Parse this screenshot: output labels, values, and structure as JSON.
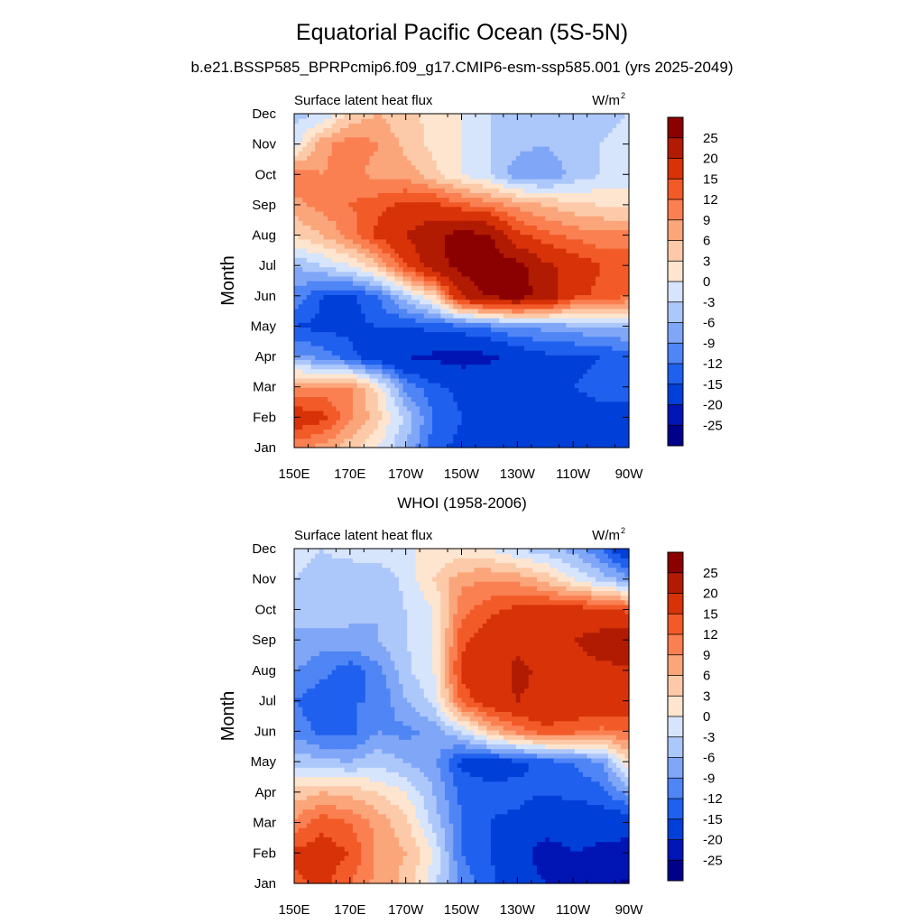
{
  "figure": {
    "title": "Equatorial Pacific Ocean (5S-5N)",
    "subtitle": "b.e21.BSSP585_BPRPcmip6.f09_g17.CMIP6-esm-ssp585.001 (yrs 2025-2049)"
  },
  "colors": {
    "palette": [
      "#00008b",
      "#0015b4",
      "#0040d8",
      "#2060ee",
      "#4f85f5",
      "#80a6f7",
      "#acc7fa",
      "#d6e4fc",
      "#fde5d0",
      "#fccaa8",
      "#fba57b",
      "#fa8052",
      "#f25a28",
      "#d73208",
      "#b01b02",
      "#8b0000"
    ]
  },
  "chart_data": [
    {
      "type": "heatmap",
      "title": "",
      "left_label": "Surface latent heat flux",
      "right_label": "W/m",
      "right_label_sup": "2",
      "xlabel": "",
      "ylabel": "Month",
      "x_range": [
        "150E",
        "90W"
      ],
      "x_ticks": [
        "150E",
        "170E",
        "170W",
        "150W",
        "130W",
        "110W",
        "90W"
      ],
      "y_ticks": [
        "Jan",
        "Feb",
        "Mar",
        "Apr",
        "May",
        "Jun",
        "Jul",
        "Aug",
        "Sep",
        "Oct",
        "Nov",
        "Dec"
      ],
      "colorbar_levels": [
        -25,
        -20,
        -15,
        -12,
        -9,
        -6,
        -3,
        0,
        3,
        6,
        9,
        12,
        15,
        20,
        25
      ],
      "colorbar_labels": [
        "25",
        "20",
        "15",
        "12",
        "9",
        "6",
        "3",
        "0",
        "-3",
        "-6",
        "-9",
        "-12",
        "-15",
        "-20",
        "-25"
      ],
      "grid": {
        "months": [
          "Jan",
          "Feb",
          "Mar",
          "Apr",
          "May",
          "Jun",
          "Jul",
          "Aug",
          "Sep",
          "Oct",
          "Nov",
          "Dec"
        ],
        "longitudes": [
          "150E",
          "160E",
          "170E",
          "180",
          "170W",
          "160W",
          "150W",
          "140W",
          "130W",
          "120W",
          "110W",
          "100W",
          "90W"
        ],
        "values": [
          [
            10,
            8,
            4,
            0,
            -6,
            -14,
            -16,
            -17,
            -18,
            -18,
            -17,
            -16,
            -15
          ],
          [
            18,
            16,
            10,
            4,
            -4,
            -12,
            -15,
            -17,
            -16,
            -17,
            -17,
            -16,
            -16
          ],
          [
            9,
            10,
            10,
            2,
            -10,
            -14,
            -16,
            -17,
            -17,
            -17,
            -15,
            -14,
            -14
          ],
          [
            -8,
            -10,
            -14,
            -18,
            -20,
            -21,
            -22,
            -21,
            -18,
            -16,
            -16,
            -15,
            -14
          ],
          [
            -15,
            -16,
            -16,
            -15,
            -15,
            -14,
            -13,
            -11,
            -9,
            -8,
            -7,
            -6,
            -5
          ],
          [
            -10,
            -15,
            -16,
            -12,
            -4,
            3,
            20,
            26,
            27,
            24,
            16,
            14,
            12
          ],
          [
            -6,
            -3,
            0,
            5,
            15,
            23,
            27,
            28,
            27,
            21,
            18,
            15,
            14
          ],
          [
            3,
            6,
            10,
            16,
            20,
            24,
            27,
            26,
            16,
            13,
            11,
            10,
            10
          ],
          [
            8,
            10,
            12,
            14,
            16,
            16,
            13,
            11,
            8,
            6,
            4,
            3,
            2
          ],
          [
            12,
            9,
            10,
            8,
            8,
            4,
            0,
            -3,
            -8,
            -9,
            -5,
            -3,
            -2
          ],
          [
            -2,
            8,
            11,
            9,
            5,
            2,
            0,
            -3,
            -5,
            -6,
            -4,
            -3,
            -2
          ],
          [
            -4,
            -3,
            4,
            6,
            4,
            2,
            0,
            -3,
            -5,
            -5,
            -4,
            -4,
            -3
          ]
        ]
      }
    },
    {
      "type": "heatmap",
      "title": "WHOI (1958-2006)",
      "left_label": "Surface latent heat flux",
      "right_label": "W/m",
      "right_label_sup": "2",
      "xlabel": "",
      "ylabel": "Month",
      "x_range": [
        "150E",
        "90W"
      ],
      "x_ticks": [
        "150E",
        "170E",
        "170W",
        "150W",
        "130W",
        "110W",
        "90W"
      ],
      "y_ticks": [
        "Jan",
        "Feb",
        "Mar",
        "Apr",
        "May",
        "Jun",
        "Jul",
        "Aug",
        "Sep",
        "Oct",
        "Nov",
        "Dec"
      ],
      "colorbar_levels": [
        -25,
        -20,
        -15,
        -12,
        -9,
        -6,
        -3,
        0,
        3,
        6,
        9,
        12,
        15,
        20,
        25
      ],
      "colorbar_labels": [
        "25",
        "20",
        "15",
        "12",
        "9",
        "6",
        "3",
        "0",
        "-3",
        "-6",
        "-9",
        "-12",
        "-15",
        "-20",
        "-25"
      ],
      "grid": {
        "months": [
          "Jan",
          "Feb",
          "Mar",
          "Apr",
          "May",
          "Jun",
          "Jul",
          "Aug",
          "Sep",
          "Oct",
          "Nov",
          "Dec"
        ],
        "longitudes": [
          "150E",
          "160E",
          "170E",
          "180",
          "170W",
          "160W",
          "150W",
          "140W",
          "130W",
          "120W",
          "110W",
          "100W",
          "90W"
        ],
        "values": [
          [
            14,
            16,
            12,
            8,
            5,
            -2,
            -10,
            -14,
            -18,
            -20,
            -22,
            -24,
            -26
          ],
          [
            16,
            17,
            15,
            8,
            6,
            0,
            -12,
            -15,
            -18,
            -22,
            -20,
            -21,
            -22
          ],
          [
            10,
            14,
            12,
            8,
            4,
            -4,
            -12,
            -15,
            -16,
            -18,
            -18,
            -18,
            -18
          ],
          [
            4,
            6,
            5,
            3,
            0,
            -6,
            -13,
            -14,
            -14,
            -15,
            -14,
            -13,
            -8
          ],
          [
            -4,
            -5,
            -6,
            -4,
            -6,
            -8,
            -16,
            -17,
            -16,
            -14,
            -12,
            -9,
            3
          ],
          [
            -10,
            -13,
            -13,
            -9,
            -10,
            -8,
            -3,
            5,
            10,
            14,
            13,
            11,
            12
          ],
          [
            -12,
            -14,
            -12,
            -12,
            -6,
            -2,
            13,
            18,
            20,
            19,
            18,
            19,
            19
          ],
          [
            -9,
            -11,
            -14,
            -10,
            -4,
            0,
            16,
            17,
            21,
            19,
            18,
            19,
            19
          ],
          [
            -6,
            -8,
            -7,
            -6,
            -3,
            0,
            14,
            18,
            19,
            18,
            20,
            22,
            24
          ],
          [
            -6,
            -3,
            -5,
            -6,
            -3,
            0,
            11,
            14,
            16,
            17,
            17,
            16,
            14
          ],
          [
            -3,
            -4,
            -5,
            -6,
            -2,
            3,
            8,
            9,
            8,
            5,
            0,
            -4,
            -8
          ],
          [
            -2,
            -3,
            -2,
            0,
            0,
            0,
            1,
            0,
            -3,
            -5,
            -7,
            -12,
            -20
          ]
        ]
      }
    }
  ]
}
